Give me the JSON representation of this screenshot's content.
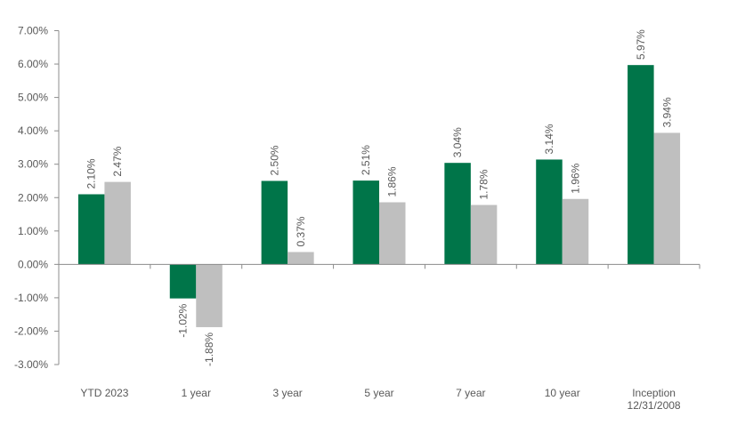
{
  "chart_data": {
    "type": "bar",
    "categories": [
      "YTD 2023",
      "1 year",
      "3 year",
      "5 year",
      "7 year",
      "10 year",
      "Inception 12/31/2008"
    ],
    "category_lines": [
      [
        "YTD 2023"
      ],
      [
        "1 year"
      ],
      [
        "3 year"
      ],
      [
        "5 year"
      ],
      [
        "7 year"
      ],
      [
        "10 year"
      ],
      [
        "Inception",
        "12/31/2008"
      ]
    ],
    "series": [
      {
        "color": "#007549",
        "values": [
          2.1,
          -1.02,
          2.5,
          2.51,
          3.04,
          3.14,
          5.97
        ],
        "labels": [
          "2.10%",
          "-1.02%",
          "2.50%",
          "2.51%",
          "3.04%",
          "3.14%",
          "5.97%"
        ]
      },
      {
        "color": "#bfbfbf",
        "values": [
          2.47,
          -1.88,
          0.37,
          1.86,
          1.78,
          1.96,
          3.94
        ],
        "labels": [
          "2.47%",
          "-1.88%",
          "0.37%",
          "1.86%",
          "1.78%",
          "1.96%",
          "3.94%"
        ]
      }
    ],
    "ylim": [
      -3.0,
      7.0
    ],
    "yticks": [
      7,
      6,
      5,
      4,
      3,
      2,
      1,
      0,
      -1,
      -2,
      -3
    ],
    "ytick_labels": [
      "7.00%",
      "6.00%",
      "5.00%",
      "4.00%",
      "3.00%",
      "2.00%",
      "1.00%",
      "0.00%",
      "-1.00%",
      "-2.00%",
      "-3.00%"
    ],
    "grid": false,
    "legend": "none",
    "title": "",
    "xlabel": "",
    "ylabel": ""
  }
}
